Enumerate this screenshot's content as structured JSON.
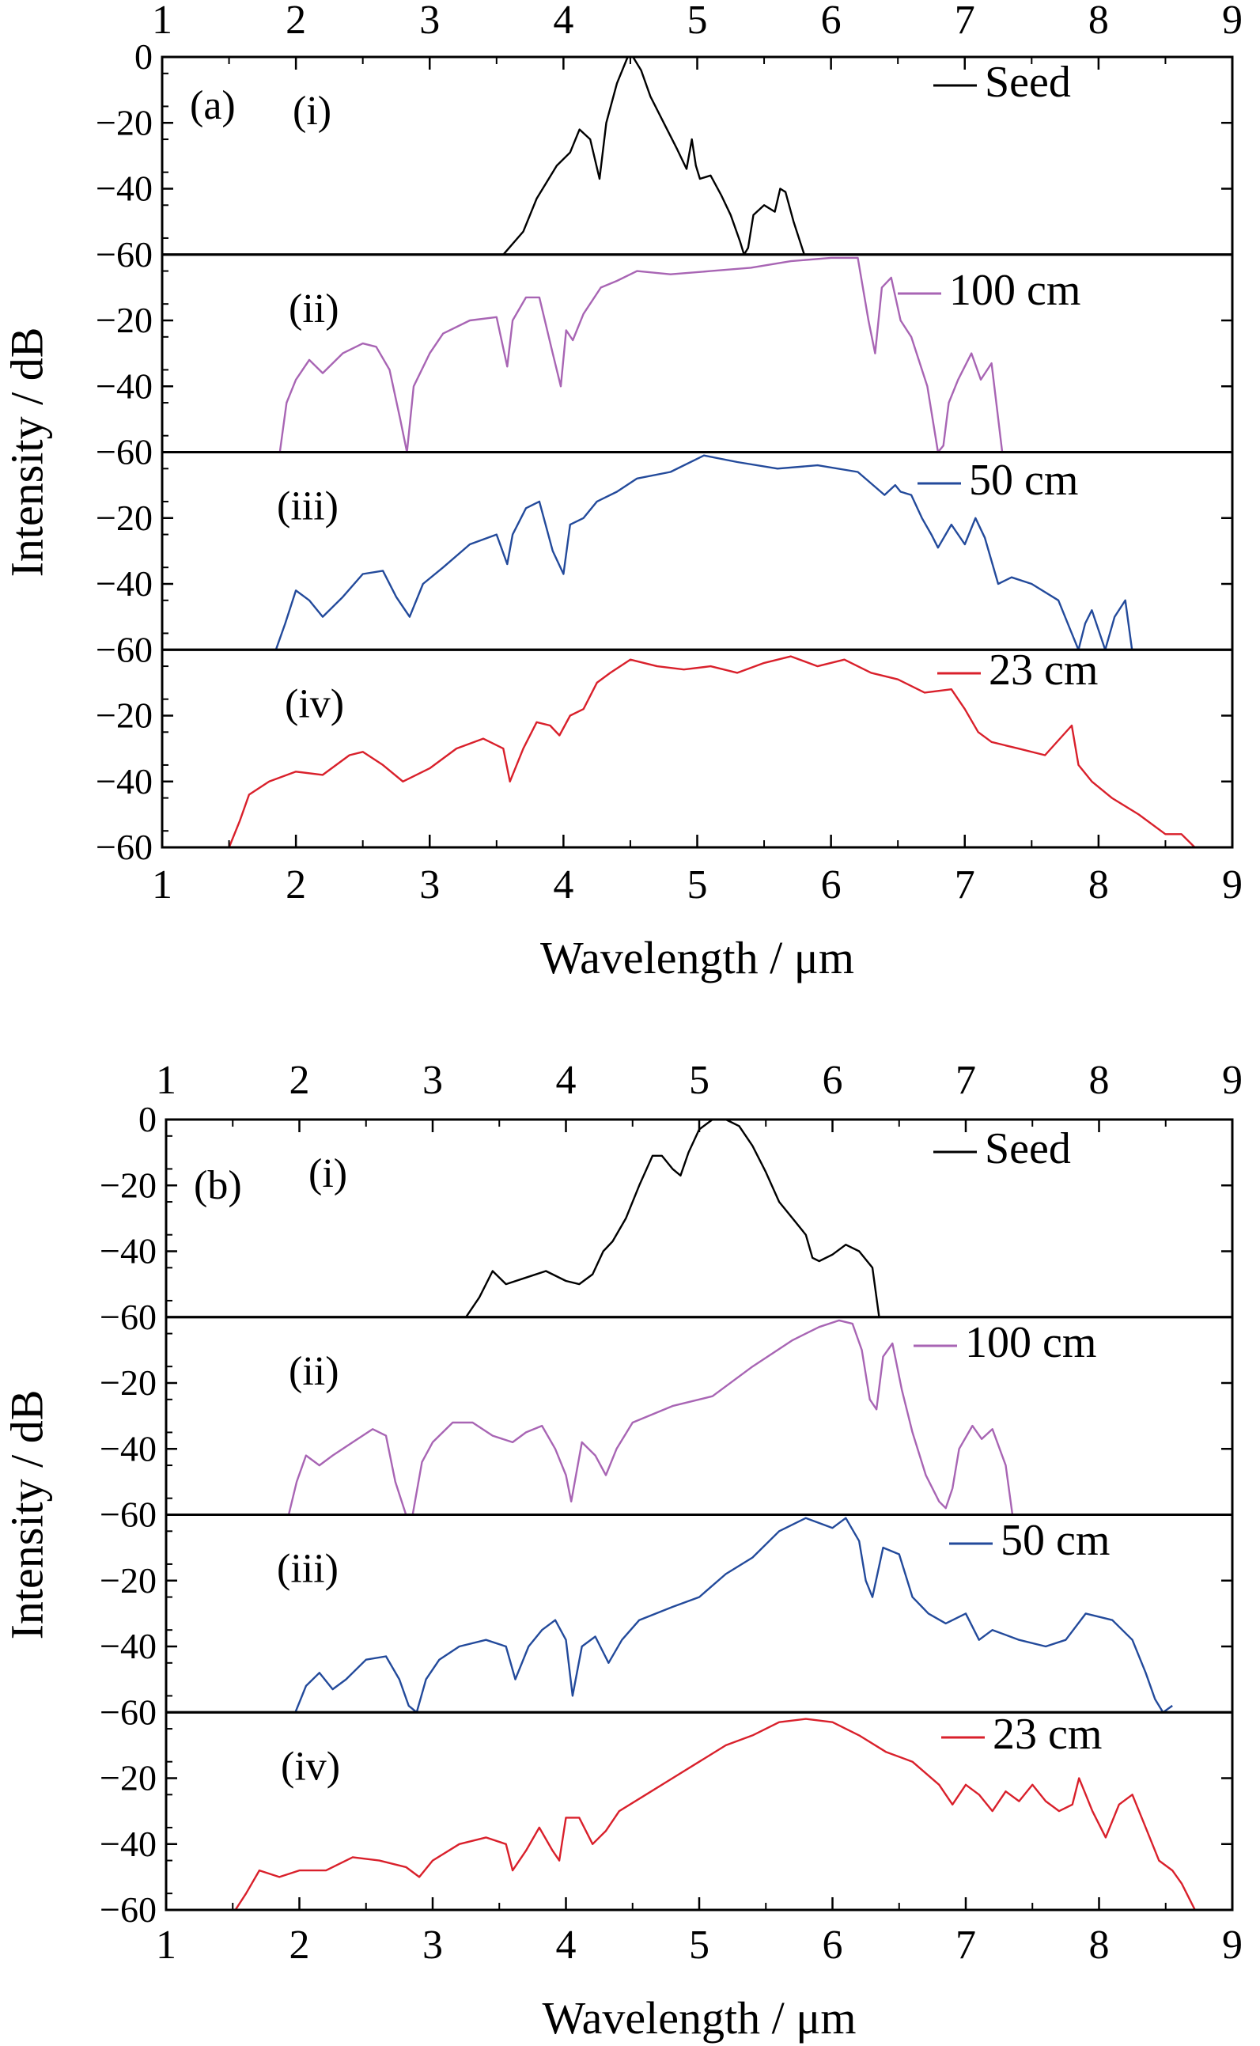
{
  "chart_data": [
    {
      "type": "line",
      "panel_label": "(a)",
      "xlabel": "Wavelength / μm",
      "ylabel": "Intensity / dB",
      "xlim": [
        1,
        9
      ],
      "ylim": [
        -60,
        0
      ],
      "x_ticks": [
        "1",
        "2",
        "3",
        "4",
        "5",
        "6",
        "7",
        "8",
        "9"
      ],
      "y_ticks": [
        "0",
        "−20",
        "−40",
        "−60"
      ],
      "legend_placement": "right",
      "grid": false,
      "subplots": [
        {
          "label": "(i)",
          "series_name": "Seed",
          "color": "#000000",
          "x": [
            3.55,
            3.7,
            3.8,
            3.95,
            4.05,
            4.12,
            4.2,
            4.27,
            4.32,
            4.4,
            4.48,
            4.52,
            4.58,
            4.65,
            4.75,
            4.85,
            4.92,
            4.96,
            4.99,
            5.02,
            5.1,
            5.18,
            5.25,
            5.32,
            5.35,
            5.38,
            5.42,
            5.5,
            5.58,
            5.62,
            5.66,
            5.72,
            5.8
          ],
          "y": [
            -60,
            -53,
            -43,
            -33,
            -29,
            -22,
            -25,
            -37,
            -20,
            -8,
            0,
            0,
            -4,
            -12,
            -20,
            -28,
            -34,
            -25,
            -33,
            -37,
            -36,
            -42,
            -48,
            -56,
            -60,
            -58,
            -48,
            -45,
            -47,
            -40,
            -41,
            -50,
            -60
          ]
        },
        {
          "label": "(ii)",
          "series_name": "100 cm",
          "color": "#a865b4",
          "x": [
            1.88,
            1.93,
            2.0,
            2.1,
            2.2,
            2.35,
            2.5,
            2.6,
            2.7,
            2.78,
            2.83,
            2.88,
            3.0,
            3.1,
            3.3,
            3.5,
            3.58,
            3.62,
            3.72,
            3.82,
            3.92,
            3.98,
            4.02,
            4.07,
            4.15,
            4.28,
            4.4,
            4.55,
            4.8,
            5.1,
            5.4,
            5.7,
            6.0,
            6.2,
            6.28,
            6.33,
            6.38,
            6.45,
            6.52,
            6.6,
            6.72,
            6.8,
            6.84,
            6.88,
            6.95,
            7.05,
            7.12,
            7.2,
            7.28
          ],
          "y": [
            -60,
            -45,
            -38,
            -32,
            -36,
            -30,
            -27,
            -28,
            -35,
            -50,
            -60,
            -40,
            -30,
            -24,
            -20,
            -19,
            -34,
            -20,
            -13,
            -13,
            -30,
            -40,
            -23,
            -26,
            -18,
            -10,
            -8,
            -5,
            -6,
            -5,
            -4,
            -2,
            -1,
            -1,
            -20,
            -30,
            -10,
            -7,
            -20,
            -25,
            -40,
            -60,
            -58,
            -45,
            -38,
            -30,
            -38,
            -33,
            -60
          ]
        },
        {
          "label": "(iii)",
          "series_name": "50 cm",
          "color": "#234a9b",
          "x": [
            1.85,
            1.92,
            2.0,
            2.1,
            2.2,
            2.35,
            2.5,
            2.65,
            2.75,
            2.85,
            2.95,
            3.1,
            3.3,
            3.5,
            3.58,
            3.62,
            3.72,
            3.82,
            3.92,
            4.0,
            4.05,
            4.15,
            4.25,
            4.4,
            4.55,
            4.8,
            5.05,
            5.3,
            5.6,
            5.9,
            6.2,
            6.4,
            6.48,
            6.52,
            6.6,
            6.68,
            6.75,
            6.8,
            6.9,
            7.0,
            7.08,
            7.15,
            7.25,
            7.35,
            7.5,
            7.7,
            7.8,
            7.85,
            7.9,
            7.95,
            8.05,
            8.12,
            8.2,
            8.25
          ],
          "y": [
            -60,
            -52,
            -42,
            -45,
            -50,
            -44,
            -37,
            -36,
            -44,
            -50,
            -40,
            -35,
            -28,
            -25,
            -34,
            -25,
            -17,
            -15,
            -30,
            -37,
            -22,
            -20,
            -15,
            -12,
            -8,
            -6,
            -1,
            -3,
            -5,
            -4,
            -6,
            -13,
            -10,
            -12,
            -13,
            -20,
            -25,
            -29,
            -22,
            -28,
            -20,
            -26,
            -40,
            -38,
            -40,
            -45,
            -55,
            -60,
            -52,
            -48,
            -60,
            -50,
            -45,
            -60
          ]
        },
        {
          "label": "(iv)",
          "series_name": "23 cm",
          "color": "#d9202b",
          "x": [
            1.5,
            1.58,
            1.65,
            1.8,
            2.0,
            2.2,
            2.4,
            2.5,
            2.65,
            2.8,
            3.0,
            3.2,
            3.4,
            3.55,
            3.6,
            3.7,
            3.8,
            3.9,
            3.97,
            4.05,
            4.15,
            4.25,
            4.35,
            4.5,
            4.7,
            4.9,
            5.1,
            5.3,
            5.5,
            5.7,
            5.9,
            6.1,
            6.3,
            6.5,
            6.7,
            6.9,
            7.0,
            7.1,
            7.2,
            7.4,
            7.6,
            7.8,
            7.85,
            7.95,
            8.1,
            8.3,
            8.5,
            8.62,
            8.72
          ],
          "y": [
            -60,
            -52,
            -44,
            -40,
            -37,
            -38,
            -32,
            -31,
            -35,
            -40,
            -36,
            -30,
            -27,
            -30,
            -40,
            -30,
            -22,
            -23,
            -26,
            -20,
            -18,
            -10,
            -7,
            -3,
            -5,
            -6,
            -5,
            -7,
            -4,
            -2,
            -5,
            -3,
            -7,
            -9,
            -13,
            -12,
            -18,
            -25,
            -28,
            -30,
            -32,
            -23,
            -35,
            -40,
            -45,
            -50,
            -56,
            -56,
            -60
          ]
        }
      ]
    },
    {
      "type": "line",
      "panel_label": "(b)",
      "xlabel": "Wavelength / μm",
      "ylabel": "Intensity / dB",
      "xlim": [
        1,
        9
      ],
      "ylim": [
        -60,
        0
      ],
      "x_ticks": [
        "1",
        "2",
        "3",
        "4",
        "5",
        "6",
        "7",
        "8",
        "9"
      ],
      "y_ticks": [
        "0",
        "−20",
        "−40",
        "−60"
      ],
      "legend_placement": "right",
      "grid": false,
      "subplots": [
        {
          "label": "(i)",
          "series_name": "Seed",
          "color": "#000000",
          "x": [
            3.25,
            3.35,
            3.45,
            3.55,
            3.7,
            3.85,
            4.0,
            4.1,
            4.2,
            4.28,
            4.35,
            4.45,
            4.55,
            4.65,
            4.72,
            4.8,
            4.86,
            4.92,
            5.0,
            5.1,
            5.2,
            5.3,
            5.4,
            5.5,
            5.6,
            5.7,
            5.8,
            5.85,
            5.9,
            6.0,
            6.1,
            6.2,
            6.3,
            6.35
          ],
          "y": [
            -60,
            -54,
            -46,
            -50,
            -48,
            -46,
            -49,
            -50,
            -47,
            -40,
            -37,
            -30,
            -20,
            -11,
            -11,
            -15,
            -17,
            -10,
            -3,
            0,
            0,
            -2,
            -8,
            -16,
            -25,
            -30,
            -35,
            -42,
            -43,
            -41,
            -38,
            -40,
            -45,
            -60
          ]
        },
        {
          "label": "(ii)",
          "series_name": "100 cm",
          "color": "#a865b4",
          "x": [
            1.92,
            1.98,
            2.05,
            2.15,
            2.25,
            2.4,
            2.55,
            2.65,
            2.72,
            2.8,
            2.85,
            2.92,
            3.0,
            3.15,
            3.3,
            3.45,
            3.6,
            3.7,
            3.82,
            3.92,
            4.0,
            4.04,
            4.12,
            4.22,
            4.3,
            4.38,
            4.5,
            4.8,
            5.1,
            5.4,
            5.7,
            5.9,
            6.05,
            6.15,
            6.22,
            6.28,
            6.33,
            6.38,
            6.45,
            6.52,
            6.6,
            6.7,
            6.8,
            6.85,
            6.9,
            6.95,
            7.05,
            7.12,
            7.2,
            7.3,
            7.35
          ],
          "y": [
            -60,
            -50,
            -42,
            -45,
            -42,
            -38,
            -34,
            -36,
            -50,
            -60,
            -60,
            -44,
            -38,
            -32,
            -32,
            -36,
            -38,
            -35,
            -33,
            -40,
            -48,
            -56,
            -38,
            -42,
            -48,
            -40,
            -32,
            -27,
            -24,
            -15,
            -7,
            -3,
            -1,
            -2,
            -10,
            -25,
            -28,
            -12,
            -8,
            -22,
            -35,
            -48,
            -56,
            -58,
            -52,
            -40,
            -33,
            -37,
            -34,
            -45,
            -60
          ]
        },
        {
          "label": "(iii)",
          "series_name": "50 cm",
          "color": "#234a9b",
          "x": [
            1.97,
            2.05,
            2.15,
            2.25,
            2.35,
            2.5,
            2.65,
            2.75,
            2.82,
            2.88,
            2.95,
            3.05,
            3.2,
            3.4,
            3.55,
            3.62,
            3.72,
            3.82,
            3.92,
            4.0,
            4.05,
            4.12,
            4.22,
            4.32,
            4.42,
            4.55,
            4.8,
            5.0,
            5.2,
            5.4,
            5.6,
            5.8,
            6.0,
            6.1,
            6.2,
            6.25,
            6.3,
            6.38,
            6.5,
            6.6,
            6.72,
            6.85,
            7.0,
            7.1,
            7.2,
            7.4,
            7.6,
            7.75,
            7.9,
            8.1,
            8.25,
            8.35,
            8.42,
            8.48,
            8.55
          ],
          "y": [
            -60,
            -52,
            -48,
            -53,
            -50,
            -44,
            -43,
            -50,
            -58,
            -60,
            -50,
            -44,
            -40,
            -38,
            -40,
            -50,
            -40,
            -35,
            -32,
            -38,
            -55,
            -40,
            -37,
            -45,
            -38,
            -32,
            -28,
            -25,
            -18,
            -13,
            -5,
            -1,
            -4,
            -1,
            -8,
            -20,
            -25,
            -10,
            -12,
            -25,
            -30,
            -33,
            -30,
            -38,
            -35,
            -38,
            -40,
            -38,
            -30,
            -32,
            -38,
            -48,
            -56,
            -60,
            -58
          ]
        },
        {
          "label": "(iv)",
          "series_name": "23 cm",
          "color": "#d9202b",
          "x": [
            1.52,
            1.6,
            1.7,
            1.85,
            2.0,
            2.2,
            2.4,
            2.6,
            2.8,
            2.9,
            3.0,
            3.2,
            3.4,
            3.55,
            3.6,
            3.7,
            3.8,
            3.9,
            3.95,
            4.0,
            4.1,
            4.2,
            4.3,
            4.4,
            4.6,
            4.8,
            5.0,
            5.2,
            5.4,
            5.6,
            5.8,
            6.0,
            6.2,
            6.4,
            6.6,
            6.8,
            6.9,
            7.0,
            7.1,
            7.2,
            7.3,
            7.4,
            7.5,
            7.6,
            7.7,
            7.8,
            7.85,
            7.9,
            7.95,
            8.05,
            8.15,
            8.25,
            8.35,
            8.45,
            8.55,
            8.62,
            8.72
          ],
          "y": [
            -60,
            -55,
            -48,
            -50,
            -48,
            -48,
            -44,
            -45,
            -47,
            -50,
            -45,
            -40,
            -38,
            -40,
            -48,
            -42,
            -35,
            -42,
            -45,
            -32,
            -32,
            -40,
            -36,
            -30,
            -25,
            -20,
            -15,
            -10,
            -7,
            -3,
            -2,
            -3,
            -7,
            -12,
            -15,
            -22,
            -28,
            -22,
            -25,
            -30,
            -24,
            -27,
            -22,
            -27,
            -30,
            -28,
            -20,
            -25,
            -30,
            -38,
            -28,
            -25,
            -35,
            -45,
            -48,
            -52,
            -60
          ]
        }
      ]
    }
  ]
}
